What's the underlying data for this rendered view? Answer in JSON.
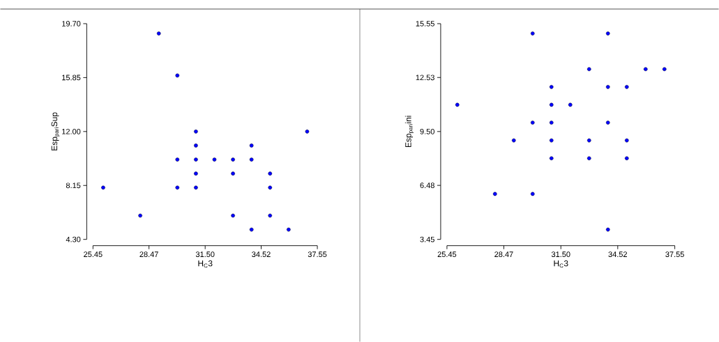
{
  "chart_data": [
    {
      "type": "scatter",
      "xlabel": "H$_{C}$3",
      "ylabel": "Esp$_{pari}$Sup",
      "marker": "circle",
      "xlim": [
        25.45,
        37.55
      ],
      "ylim": [
        4.3,
        19.7
      ],
      "xticks": [
        {
          "value": 25.45,
          "label": "25.45"
        },
        {
          "value": 28.47,
          "label": "28.47"
        },
        {
          "value": 31.5,
          "label": "31.50"
        },
        {
          "value": 34.52,
          "label": "34.52"
        },
        {
          "value": 37.55,
          "label": "37.55"
        }
      ],
      "yticks": [
        {
          "value": 4.3,
          "label": "4.30"
        },
        {
          "value": 8.15,
          "label": "8.15"
        },
        {
          "value": 12,
          "label": "12.00"
        },
        {
          "value": 15.85,
          "label": "15.85"
        },
        {
          "value": 19.7,
          "label": "19.70"
        }
      ],
      "series": [
        {
          "color": "#0000ff",
          "x": [
            29,
            30,
            26,
            28,
            30,
            30,
            31,
            31,
            31,
            31,
            31,
            32,
            33,
            33,
            33,
            34,
            34,
            34,
            35,
            35,
            35,
            36,
            37
          ],
          "values": [
            19,
            16,
            8,
            6,
            10,
            8,
            12,
            11,
            10,
            9,
            8,
            10,
            10,
            9,
            6,
            11,
            10,
            5,
            9,
            8,
            6,
            5,
            12
          ]
        }
      ]
    },
    {
      "type": "scatter",
      "xlabel": "H$_{C}$3",
      "ylabel": "Esp$_{pari}$ini",
      "marker": "circle",
      "xlim": [
        25.45,
        37.55
      ],
      "ylim": [
        3.45,
        15.55
      ],
      "xticks": [
        {
          "value": 25.45,
          "label": "25.45"
        },
        {
          "value": 28.47,
          "label": "28.47"
        },
        {
          "value": 31.5,
          "label": "31.50"
        },
        {
          "value": 34.52,
          "label": "34.52"
        },
        {
          "value": 37.55,
          "label": "37.55"
        }
      ],
      "yticks": [
        {
          "value": 3.45,
          "label": "3.45"
        },
        {
          "value": 6.48,
          "label": "6.48"
        },
        {
          "value": 9.5,
          "label": "9.50"
        },
        {
          "value": 12.53,
          "label": "12.53"
        },
        {
          "value": 15.55,
          "label": "15.55"
        }
      ],
      "series": [
        {
          "color": "#0000ff",
          "x": [
            30,
            34,
            33,
            36,
            37,
            31,
            34,
            35,
            26,
            31,
            32,
            30,
            31,
            34,
            29,
            31,
            33,
            35,
            31,
            33,
            35,
            28,
            30,
            34
          ],
          "values": [
            15,
            15,
            13,
            13,
            13,
            12,
            12,
            12,
            11,
            11,
            11,
            10,
            10,
            10,
            9,
            9,
            9,
            9,
            8,
            8,
            8,
            6,
            6,
            4
          ]
        }
      ]
    }
  ]
}
